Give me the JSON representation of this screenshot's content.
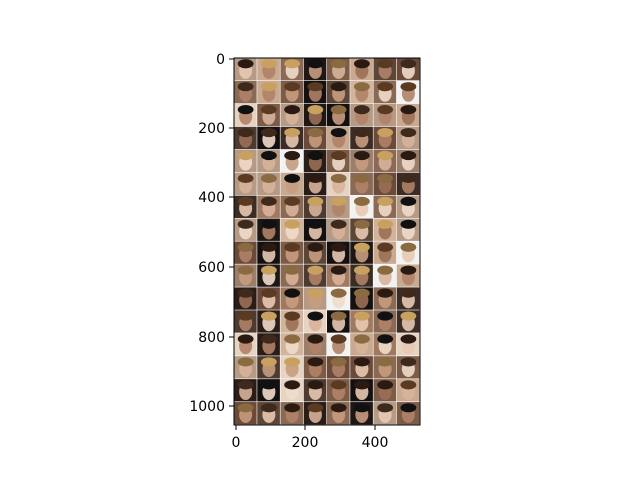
{
  "figure": {
    "x_ticks": [
      "0",
      "200",
      "400"
    ],
    "y_ticks": [
      "0",
      "200",
      "400",
      "600",
      "800",
      "1000"
    ],
    "grid": {
      "rows": 16,
      "cols": 8
    },
    "palette": [
      "#6b4a3a",
      "#8a6a55",
      "#2a1d18",
      "#c9a98f",
      "#4d3a30",
      "#a07a60",
      "#1e1714",
      "#b59a86",
      "#5c4637",
      "#e6d3c2",
      "#7d5c47",
      "#3b2d25",
      "#d2b49c",
      "#9b7f6a",
      "#f2f2f2",
      "#141010"
    ]
  }
}
